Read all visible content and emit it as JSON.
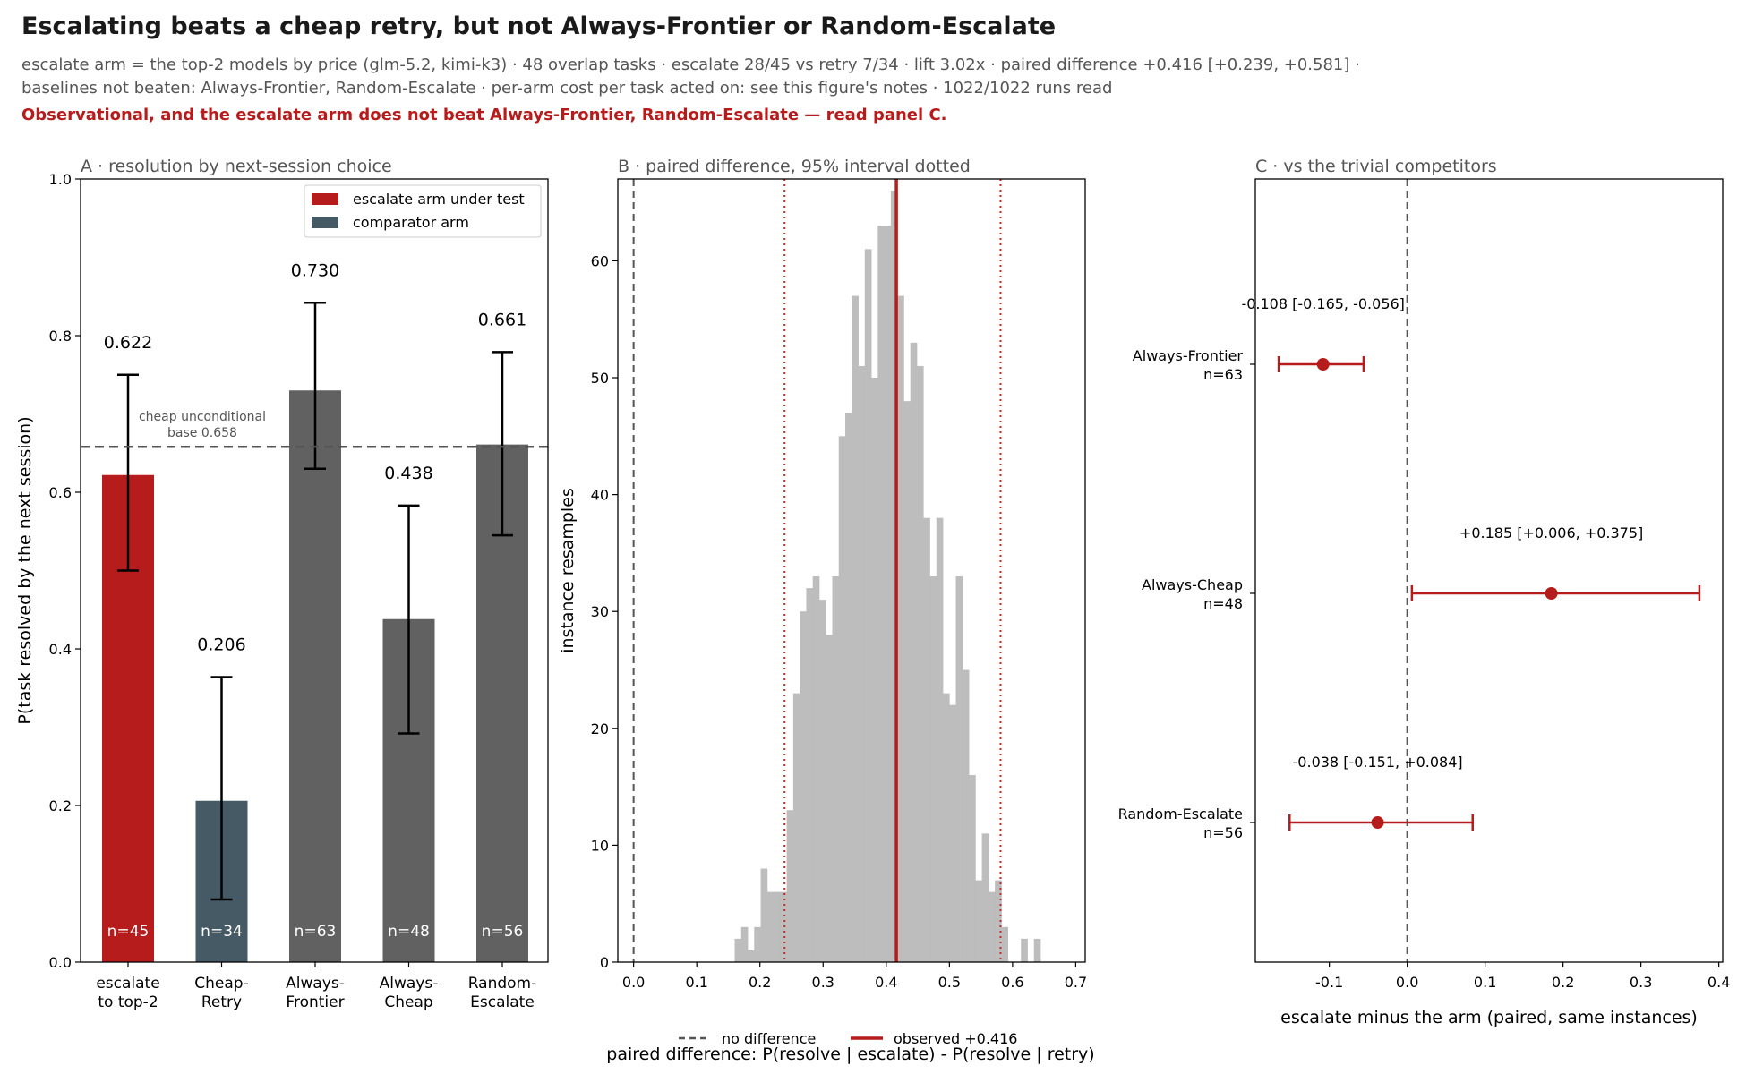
{
  "title": "Escalating beats a cheap retry, but not Always-Frontier or Random-Escalate",
  "subtitle": "escalate arm = the top-2 models by price (glm-5.2, kimi-k3) · 48 overlap tasks · escalate 28/45 vs retry 7/34 · lift 3.02x · paired difference +0.416 [+0.239, +0.581] · baselines not beaten: Always-Frontier, Random-Escalate · per-arm cost per task acted on: see this figure's notes · 1022/1022 runs read",
  "warning": "Observational, and the escalate arm does not beat Always-Frontier, Random-Escalate — read panel C.",
  "colors": {
    "escalate": "#b71c1c",
    "comparator": "#455a64",
    "arm": "#616161",
    "hist": "#bdbdbd",
    "accent": "#c62828",
    "dashed": "#555555"
  },
  "chart_data": [
    {
      "type": "bar",
      "title": "A · resolution by next-session choice",
      "ylabel": "P(task resolved by the next session)",
      "ylim": [
        0,
        1.0
      ],
      "yticks": [
        "0.0",
        "0.2",
        "0.4",
        "0.6",
        "0.8",
        "1.0"
      ],
      "categories": [
        "escalate to top-2",
        "Cheap-Retry",
        "Always-Frontier",
        "Always-Cheap",
        "Random-Escalate"
      ],
      "category_lines": [
        [
          "escalate",
          "to top-2"
        ],
        [
          "Cheap-",
          "Retry"
        ],
        [
          "Always-",
          "Frontier"
        ],
        [
          "Always-",
          "Cheap"
        ],
        [
          "Random-",
          "Escalate"
        ]
      ],
      "values": [
        0.622,
        0.206,
        0.73,
        0.438,
        0.661
      ],
      "value_labels": [
        "0.622",
        "0.206",
        "0.730",
        "0.438",
        "0.661"
      ],
      "ci_low": [
        0.5,
        0.08,
        0.63,
        0.292,
        0.545
      ],
      "ci_high": [
        0.75,
        0.364,
        0.842,
        0.583,
        0.779
      ],
      "n_labels": [
        "n=45",
        "n=34",
        "n=63",
        "n=48",
        "n=56"
      ],
      "bar_roles": [
        "escalate",
        "comparator",
        "arm",
        "arm",
        "arm"
      ],
      "baseline": {
        "value": 0.658,
        "label_lines": [
          "cheap unconditional",
          "base 0.658"
        ]
      },
      "legend": {
        "position": "top-right",
        "entries": [
          "escalate arm under test",
          "comparator arm"
        ]
      }
    },
    {
      "type": "histogram",
      "title": "B · paired difference, 95% interval dotted",
      "ylabel": "instance resamples",
      "xlabel": "paired difference: P(resolve | escalate) - P(resolve | retry)",
      "xlim": [
        -0.025,
        0.715
      ],
      "ylim": [
        0,
        67
      ],
      "xticks": [
        "0.0",
        "0.1",
        "0.2",
        "0.3",
        "0.4",
        "0.5",
        "0.6",
        "0.7"
      ],
      "yticks": [
        "0",
        "10",
        "20",
        "30",
        "40",
        "50",
        "60"
      ],
      "bin_start": 0.16,
      "bin_width": 0.0103,
      "counts": [
        2,
        3,
        1,
        3,
        8,
        6,
        6,
        6,
        13,
        23,
        30,
        32,
        33,
        31,
        28,
        33,
        45,
        47,
        57,
        51,
        61,
        50,
        63,
        63,
        66,
        57,
        48,
        53,
        51,
        38,
        33,
        38,
        23,
        22,
        33,
        25,
        16,
        7,
        11,
        6,
        7,
        3,
        0,
        0,
        2,
        0,
        2
      ],
      "observed": 0.416,
      "ci": [
        0.239,
        0.581
      ],
      "null_value": 0,
      "legend": [
        "no difference",
        "observed +0.416"
      ]
    },
    {
      "type": "forest",
      "title": "C · vs the trivial competitors",
      "xlabel": "escalate minus the arm (paired, same instances)",
      "xlim": [
        -0.195,
        0.405
      ],
      "xticks": [
        "-0.1",
        "0.0",
        "0.1",
        "0.2",
        "0.3",
        "0.4"
      ],
      "rows": [
        {
          "arm": "Always-Frontier",
          "n": "n=63",
          "estimate": -0.108,
          "low": -0.165,
          "high": -0.056,
          "label": "-0.108 [-0.165, -0.056]"
        },
        {
          "arm": "Always-Cheap",
          "n": "n=48",
          "estimate": 0.185,
          "low": 0.006,
          "high": 0.375,
          "label": "+0.185 [+0.006, +0.375]"
        },
        {
          "arm": "Random-Escalate",
          "n": "n=56",
          "estimate": -0.038,
          "low": -0.151,
          "high": 0.084,
          "label": "-0.038 [-0.151, +0.084]"
        }
      ]
    }
  ]
}
